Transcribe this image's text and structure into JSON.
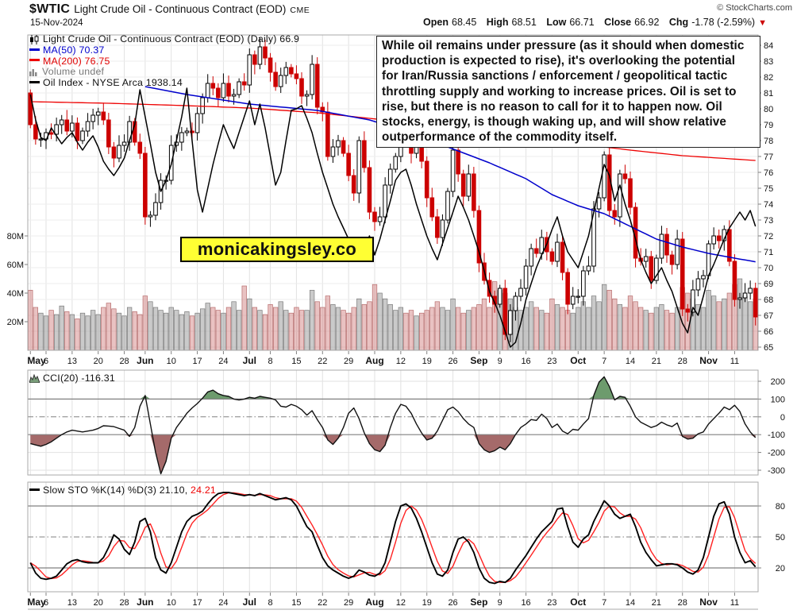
{
  "header": {
    "symbol": "$WTIC",
    "title": "Light Crude Oil - Continuous Contract (EOD)",
    "exchange": "CME",
    "date": "15-Nov-2024",
    "copyright": "© StockCharts.com",
    "quote": {
      "open_label": "Open",
      "open_value": "68.45",
      "high_label": "High",
      "high_value": "68.51",
      "low_label": "Low",
      "low_value": "66.71",
      "close_label": "Close",
      "close_value": "66.92",
      "chg_label": "Chg",
      "chg_value": "-1.78 (-2.59%)",
      "chg_direction": "down",
      "chg_arrow": "▼"
    }
  },
  "legend_main": {
    "series_label": "Light Crude Oil - Continuous Contract (EOD) (Daily) 66.9",
    "ma50_label": "MA(50) 70.37",
    "ma200_label": "MA(200) 76.75",
    "volume_label": "Volume undef",
    "overlay_label": "Oil Index - NYSE Arca 1938.14"
  },
  "annotation_text": "While oil remains under pressure (as it should when domestic production is expected to rise), it's overlooking the potential for Iran/Russia sanctions / enforcement / geopolitical tactic throttling supply and working to increase prices. Oil is set to rise, but there is no reason to call for it to happen now. Oil stocks, energy, is though waking up, and will show relative outperformance of the commodity itself.",
  "watermark": "monicakingsley.co",
  "cci_legend": "CCI(20) -116.31",
  "sto_legend_black": "Slow STO %K(14) %D(3) 21.10,",
  "sto_legend_red": "24.21",
  "colors": {
    "candle_down": "#cc0000",
    "candle_up_fill": "#ffffff",
    "candle_up_stroke": "#000000",
    "ma50": "#0000cc",
    "ma200": "#ee0000",
    "oil_index": "#000000",
    "vol_down_fill": "rgba(206,120,120,0.45)",
    "vol_down_stroke": "rgba(176,96,96,0.9)",
    "vol_up_fill": "rgba(150,150,150,0.5)",
    "vol_up_stroke": "rgba(112,112,112,0.9)",
    "cci_pos_fill": "#6d9b6d",
    "cci_neg_fill": "#a56a6a",
    "cci_line": "#111111",
    "sto_k": "#000000",
    "sto_d": "#ff2222",
    "threshold": "#808080",
    "grid": "#e2e2e2",
    "grid_light": "#ededed",
    "frame": "#a8a8a8",
    "watermark_bg": "#ffff33",
    "chg_arrow": "#cc0000"
  },
  "chart_data": {
    "type": "candlestick",
    "title": "$WTIC Light Crude Oil - Continuous Contract (EOD) (Daily)",
    "legend_position": "top-left",
    "grid": true,
    "price_axis_ticks": [
      84,
      83,
      82,
      81,
      80,
      79,
      78,
      77,
      76,
      75,
      74,
      73,
      72,
      71,
      70,
      69,
      68,
      67,
      66,
      65
    ],
    "price_range": [
      65,
      84.6
    ],
    "volume_axis_ticks": [
      "80M",
      "60M",
      "40M",
      "20M"
    ],
    "cci_axis_ticks": [
      200,
      100,
      0,
      -100,
      -200,
      -300
    ],
    "cci_range": [
      -320,
      230
    ],
    "sto_axis_ticks": [
      80,
      50,
      20
    ],
    "sto_range": [
      0,
      100
    ],
    "cci_thresholds": [
      100,
      -100
    ],
    "cci_zero": 0,
    "sto_thresholds": [
      80,
      20
    ],
    "sto_mid": 50,
    "x_labels": [
      {
        "t": "May",
        "d": 0,
        "b": 1
      },
      {
        "t": "6",
        "d": 3
      },
      {
        "t": "13",
        "d": 8
      },
      {
        "t": "20",
        "d": 13
      },
      {
        "t": "28",
        "d": 18
      },
      {
        "t": "Jun",
        "d": 22,
        "b": 1
      },
      {
        "t": "10",
        "d": 27
      },
      {
        "t": "17",
        "d": 32
      },
      {
        "t": "24",
        "d": 37
      },
      {
        "t": "Jul",
        "d": 42,
        "b": 1
      },
      {
        "t": "8",
        "d": 46
      },
      {
        "t": "15",
        "d": 51
      },
      {
        "t": "22",
        "d": 56
      },
      {
        "t": "29",
        "d": 61
      },
      {
        "t": "Aug",
        "d": 66,
        "b": 1
      },
      {
        "t": "12",
        "d": 71
      },
      {
        "t": "19",
        "d": 76
      },
      {
        "t": "26",
        "d": 81
      },
      {
        "t": "Sep",
        "d": 86,
        "b": 1
      },
      {
        "t": "9",
        "d": 90
      },
      {
        "t": "16",
        "d": 95
      },
      {
        "t": "23",
        "d": 100
      },
      {
        "t": "Oct",
        "d": 105,
        "b": 1
      },
      {
        "t": "7",
        "d": 110
      },
      {
        "t": "14",
        "d": 115
      },
      {
        "t": "21",
        "d": 120
      },
      {
        "t": "28",
        "d": 125
      },
      {
        "t": "Nov",
        "d": 130,
        "b": 1
      },
      {
        "t": "11",
        "d": 135
      }
    ],
    "first_open": 81.0,
    "closes": [
      79.0,
      78.1,
      78.1,
      78.5,
      78.4,
      79.0,
      79.3,
      78.6,
      79.1,
      78.0,
      78.6,
      79.2,
      79.6,
      79.8,
      79.3,
      77.6,
      76.9,
      77.7,
      77.9,
      79.2,
      77.9,
      77.2,
      73.2,
      73.3,
      74.1,
      75.5,
      75.5,
      77.7,
      77.9,
      78.5,
      78.6,
      78.5,
      79.7,
      80.7,
      81.6,
      81.3,
      80.7,
      81.6,
      80.8,
      80.9,
      81.7,
      81.5,
      83.4,
      82.8,
      83.9,
      83.2,
      82.3,
      81.4,
      82.1,
      82.6,
      82.2,
      81.9,
      80.8,
      80.9,
      82.8,
      80.1,
      79.8,
      77.0,
      77.6,
      78.0,
      77.2,
      75.8,
      74.7,
      78.0,
      76.3,
      73.5,
      72.9,
      73.2,
      75.2,
      76.2,
      77.0,
      78.4,
      78.3,
      77.2,
      78.2,
      76.7,
      74.4,
      73.2,
      71.9,
      73.0,
      74.8,
      77.4,
      75.9,
      74.5,
      75.9,
      73.6,
      70.3,
      69.2,
      68.2,
      67.7,
      68.7,
      65.8,
      67.3,
      68.2,
      68.7,
      70.1,
      71.2,
      70.9,
      71.9,
      71.0,
      70.4,
      71.6,
      69.7,
      67.7,
      68.2,
      68.2,
      69.8,
      70.1,
      73.7,
      74.4,
      77.1,
      73.6,
      73.2,
      75.9,
      75.6,
      73.8,
      70.6,
      70.4,
      70.7,
      69.2,
      70.6,
      72.1,
      70.8,
      70.2,
      71.8,
      67.4,
      67.2,
      68.6,
      69.3,
      69.5,
      71.5,
      72.0,
      71.7,
      72.4,
      70.4,
      68.0,
      68.1,
      68.4,
      68.7,
      66.9
    ],
    "volumes": [
      42,
      30,
      26,
      24,
      28,
      25,
      31,
      27,
      25,
      22,
      26,
      24,
      28,
      25,
      30,
      33,
      29,
      26,
      24,
      30,
      27,
      25,
      38,
      34,
      30,
      28,
      26,
      30,
      28,
      25,
      27,
      24,
      26,
      29,
      33,
      30,
      28,
      26,
      30,
      34,
      28,
      45,
      36,
      30,
      28,
      25,
      32,
      30,
      34,
      28,
      26,
      30,
      28,
      28,
      42,
      34,
      30,
      38,
      32,
      30,
      28,
      26,
      30,
      36,
      32,
      34,
      46,
      40,
      36,
      32,
      28,
      30,
      26,
      28,
      24,
      26,
      28,
      30,
      34,
      30,
      28,
      36,
      30,
      26,
      28,
      30,
      32,
      36,
      30,
      48,
      42,
      40,
      36,
      30,
      28,
      30,
      34,
      30,
      28,
      26,
      36,
      32,
      30,
      28,
      26,
      30,
      34,
      30,
      38,
      34,
      46,
      42,
      36,
      32,
      30,
      38,
      34,
      30,
      28,
      26,
      30,
      32,
      28,
      26,
      30,
      44,
      40,
      36,
      32,
      30,
      42,
      38,
      34,
      36,
      40,
      46,
      50,
      38,
      34,
      36
    ],
    "ma50_waypoints": [
      [
        22,
        81.4
      ],
      [
        30,
        80.9
      ],
      [
        42,
        80.3
      ],
      [
        55,
        79.9
      ],
      [
        65,
        79.3
      ],
      [
        72,
        78.6
      ],
      [
        80,
        77.6
      ],
      [
        88,
        76.6
      ],
      [
        95,
        75.6
      ],
      [
        100,
        74.6
      ],
      [
        105,
        73.9
      ],
      [
        110,
        73.4
      ],
      [
        115,
        72.6
      ],
      [
        120,
        71.8
      ],
      [
        125,
        71.3
      ],
      [
        130,
        70.9
      ],
      [
        135,
        70.6
      ],
      [
        139,
        70.37
      ]
    ],
    "ma200_waypoints": [
      [
        0,
        80.45
      ],
      [
        15,
        80.35
      ],
      [
        30,
        80.2
      ],
      [
        42,
        80.05
      ],
      [
        55,
        79.75
      ],
      [
        65,
        79.4
      ],
      [
        75,
        79.05
      ],
      [
        85,
        78.65
      ],
      [
        95,
        78.2
      ],
      [
        105,
        77.8
      ],
      [
        115,
        77.4
      ],
      [
        125,
        77.05
      ],
      [
        132,
        76.9
      ],
      [
        139,
        76.75
      ]
    ],
    "oil_index": [
      80.9,
      79.3,
      78.2,
      78.0,
      78.8,
      78.3,
      77.8,
      78.2,
      78.5,
      77.9,
      77.4,
      77.9,
      78.3,
      77.6,
      76.7,
      76.2,
      75.8,
      76.3,
      76.9,
      78.0,
      79.0,
      81.2,
      79.5,
      77.8,
      76.0,
      74.8,
      75.5,
      76.5,
      78.0,
      79.5,
      81.3,
      78.0,
      74.9,
      73.5,
      75.0,
      76.5,
      77.8,
      79.0,
      78.2,
      77.5,
      78.5,
      79.5,
      80.5,
      79.0,
      80.3,
      78.8,
      77.0,
      75.2,
      76.0,
      78.0,
      79.9,
      80.0,
      80.2,
      79.4,
      78.5,
      77.2,
      76.0,
      75.0,
      74.0,
      73.2,
      72.5,
      71.8,
      71.2,
      70.5,
      71.2,
      72.0,
      70.8,
      71.8,
      73.0,
      74.2,
      75.5,
      76.0,
      76.2,
      75.2,
      74.0,
      73.0,
      72.0,
      71.2,
      70.5,
      71.5,
      72.5,
      73.5,
      74.5,
      73.8,
      73.0,
      72.0,
      71.0,
      69.8,
      68.5,
      67.8,
      67.0,
      66.0,
      65.0,
      65.3,
      66.5,
      68.0,
      69.0,
      70.0,
      70.8,
      71.5,
      72.4,
      73.2,
      72.0,
      71.0,
      70.5,
      70.0,
      71.0,
      72.0,
      73.5,
      75.0,
      76.5,
      75.8,
      74.2,
      75.2,
      74.0,
      73.0,
      71.8,
      70.5,
      69.7,
      69.0,
      69.5,
      70.0,
      69.2,
      68.5,
      67.5,
      66.5,
      65.9,
      67.5,
      67.0,
      68.2,
      69.5,
      70.2,
      71.0,
      71.8,
      72.5,
      73.0,
      73.5,
      73.0,
      73.6,
      72.6
    ],
    "cci": [
      -150,
      -158,
      -165,
      -155,
      -140,
      -120,
      -100,
      -85,
      -75,
      -80,
      -85,
      -80,
      -75,
      -65,
      -50,
      -52,
      -55,
      -65,
      -75,
      -110,
      -60,
      60,
      120,
      -40,
      -200,
      -320,
      -250,
      -120,
      -60,
      -20,
      20,
      50,
      75,
      105,
      140,
      150,
      130,
      120,
      115,
      100,
      95,
      100,
      110,
      105,
      115,
      110,
      105,
      95,
      60,
      55,
      70,
      60,
      40,
      10,
      35,
      -15,
      -60,
      -130,
      -155,
      -120,
      -60,
      20,
      50,
      -10,
      -90,
      -150,
      -185,
      -195,
      -160,
      -60,
      20,
      70,
      60,
      20,
      -40,
      -90,
      -130,
      -120,
      -80,
      -20,
      40,
      55,
      30,
      -10,
      -40,
      -60,
      -150,
      -185,
      -200,
      -190,
      -170,
      -185,
      -150,
      -100,
      -60,
      -40,
      -15,
      -20,
      15,
      -10,
      -60,
      -40,
      -80,
      -95,
      -70,
      -75,
      -40,
      -10,
      120,
      195,
      225,
      170,
      95,
      115,
      110,
      60,
      0,
      -30,
      -45,
      -60,
      -50,
      -30,
      -45,
      -55,
      -35,
      -110,
      -125,
      -120,
      -95,
      -85,
      -40,
      -10,
      20,
      55,
      40,
      65,
      30,
      -40,
      -85,
      -116.31
    ],
    "sto_k": [
      25,
      15,
      10,
      9,
      10,
      12,
      18,
      24,
      27,
      28,
      26,
      25,
      25,
      25,
      30,
      40,
      52,
      48,
      38,
      33,
      45,
      65,
      68,
      55,
      30,
      18,
      15,
      25,
      40,
      55,
      65,
      70,
      72,
      75,
      82,
      88,
      92,
      93,
      93,
      92,
      91,
      90,
      91,
      90,
      92,
      90,
      88,
      86,
      87,
      88,
      86,
      80,
      70,
      60,
      55,
      42,
      30,
      22,
      18,
      15,
      12,
      10,
      12,
      18,
      16,
      13,
      12,
      15,
      25,
      45,
      65,
      80,
      82,
      78,
      68,
      55,
      40,
      25,
      14,
      12,
      18,
      35,
      48,
      50,
      45,
      35,
      20,
      10,
      6,
      5,
      7,
      6,
      10,
      18,
      25,
      32,
      40,
      48,
      55,
      60,
      65,
      77,
      78,
      60,
      45,
      40,
      48,
      52,
      65,
      75,
      85,
      80,
      72,
      68,
      70,
      72,
      60,
      45,
      35,
      28,
      22,
      23,
      24,
      24,
      23,
      20,
      16,
      14,
      18,
      30,
      50,
      70,
      82,
      84,
      72,
      50,
      35,
      25,
      27,
      21.1
    ]
  }
}
